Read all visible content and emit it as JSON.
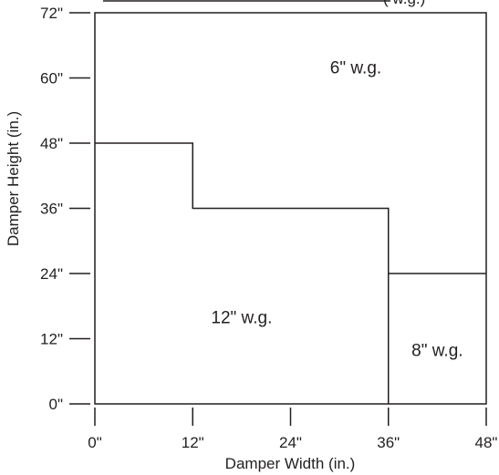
{
  "chart_data": {
    "type": "region-diagram",
    "title_fragment": "( w.g.)",
    "xlabel": "Damper Width (in.)",
    "ylabel": "Damper Height (in.)",
    "xlim": [
      0,
      48
    ],
    "ylim": [
      0,
      72
    ],
    "x_ticks": [
      {
        "value": 0,
        "label": "0\""
      },
      {
        "value": 12,
        "label": "12\""
      },
      {
        "value": 24,
        "label": "24\""
      },
      {
        "value": 36,
        "label": "36\""
      },
      {
        "value": 48,
        "label": "48\""
      }
    ],
    "y_ticks": [
      {
        "value": 0,
        "label": "0\""
      },
      {
        "value": 12,
        "label": "12\""
      },
      {
        "value": 24,
        "label": "24\""
      },
      {
        "value": 36,
        "label": "36\""
      },
      {
        "value": 48,
        "label": "48\""
      },
      {
        "value": 60,
        "label": "60\""
      },
      {
        "value": 72,
        "label": "72\""
      }
    ],
    "boundaries": [
      {
        "name": "12-to-6-boundary",
        "points": [
          [
            0,
            48
          ],
          [
            12,
            48
          ],
          [
            12,
            36
          ],
          [
            36,
            36
          ],
          [
            36,
            0
          ]
        ]
      },
      {
        "name": "8-to-6-boundary",
        "points": [
          [
            36,
            24
          ],
          [
            48,
            24
          ]
        ]
      }
    ],
    "regions": [
      {
        "label": "6\" w.g.",
        "x": 32,
        "y": 62
      },
      {
        "label": "12\" w.g.",
        "x": 18,
        "y": 16
      },
      {
        "label": "8\" w.g.",
        "x": 42,
        "y": 10
      }
    ]
  }
}
